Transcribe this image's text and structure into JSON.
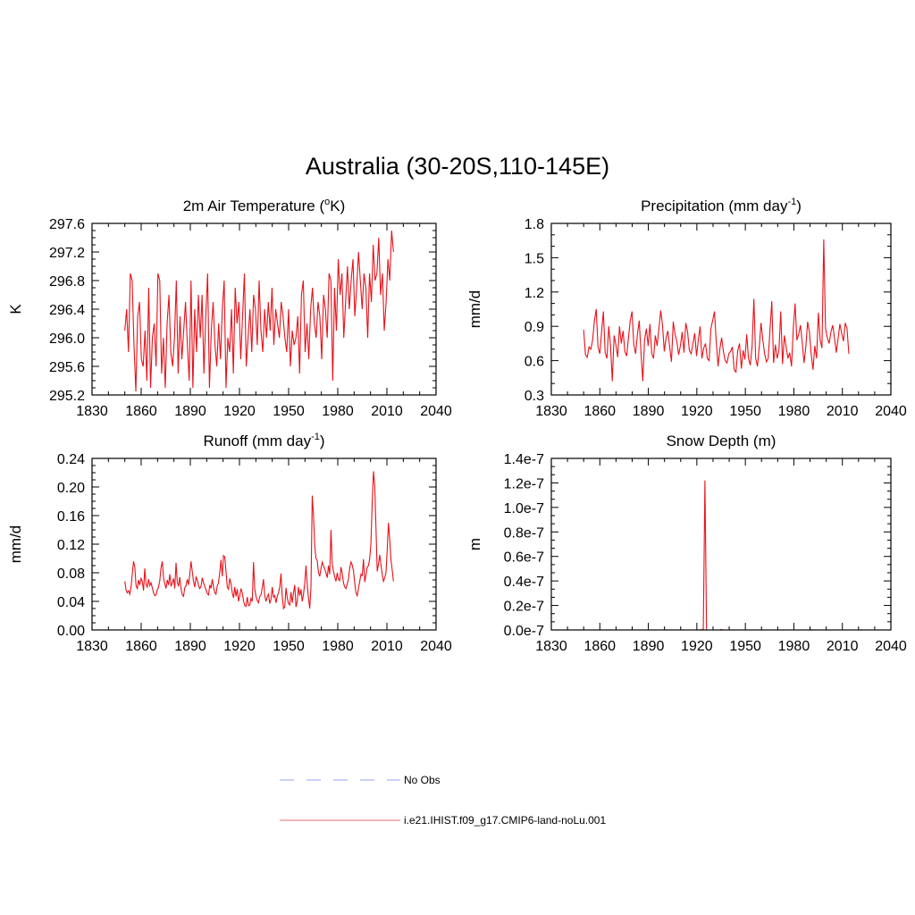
{
  "title": "Australia (30-20S,110-145E)",
  "legend": [
    {
      "label": "No Obs",
      "color": "#aab4f2",
      "dash": true
    },
    {
      "label": "i.e21.IHIST.f09_g17.CMIP6-land-noLu.001",
      "color": "#f08a8a",
      "dash": false
    }
  ],
  "chart_data": [
    {
      "type": "line",
      "title_pre": "2m Air Temperature (",
      "title_sup": "o",
      "title_post": "K)",
      "ylabel": "K",
      "xlim": [
        1830,
        2040
      ],
      "ylim": [
        295.2,
        297.6
      ],
      "xticks": [
        "1830",
        "1860",
        "1890",
        "1920",
        "1950",
        "1980",
        "2010",
        "2040"
      ],
      "yticks": [
        "295.2",
        "295.6",
        "296.0",
        "296.4",
        "296.8",
        "297.2",
        "297.6"
      ],
      "series": [
        {
          "color": "#e8111a",
          "x_start": 1850,
          "values": [
            296.1,
            296.4,
            295.8,
            296.9,
            296.8,
            295.9,
            295.25,
            296.3,
            296.5,
            295.7,
            295.6,
            296.1,
            295.4,
            296.7,
            295.3,
            296.0,
            296.2,
            295.6,
            296.9,
            296.8,
            295.5,
            296.0,
            295.3,
            296.2,
            296.6,
            295.8,
            295.6,
            296.0,
            296.8,
            295.5,
            296.3,
            295.7,
            296.1,
            296.5,
            295.9,
            295.4,
            296.8,
            295.3,
            296.4,
            295.8,
            296.6,
            296.0,
            296.6,
            295.5,
            296.3,
            296.9,
            295.3,
            296.1,
            296.5,
            295.9,
            295.6,
            296.2,
            295.7,
            296.4,
            296.8,
            295.3,
            296.0,
            295.8,
            296.4,
            295.5,
            296.7,
            296.2,
            296.5,
            295.7,
            296.3,
            296.9,
            295.6,
            296.0,
            296.4,
            295.8,
            296.6,
            296.4,
            295.9,
            296.8,
            296.1,
            295.8,
            296.4,
            296.0,
            296.5,
            296.1,
            296.7,
            295.9,
            296.4,
            296.2,
            296.0,
            296.5,
            296.3,
            296.0,
            295.8,
            296.4,
            295.6,
            296.1,
            295.9,
            296.0,
            296.3,
            295.5,
            296.6,
            296.8,
            295.8,
            296.2,
            295.7,
            296.4,
            296.7,
            296.2,
            296.0,
            296.5,
            296.3,
            295.7,
            296.6,
            296.4,
            296.0,
            296.9,
            296.8,
            295.4,
            296.7,
            296.1,
            297.1,
            296.6,
            296.9,
            296.0,
            296.5,
            297.0,
            296.4,
            296.8,
            297.1,
            296.3,
            296.7,
            297.2,
            296.8,
            296.4,
            296.9,
            296.7,
            296.0,
            296.9,
            296.5,
            297.3,
            296.8,
            296.9,
            297.4,
            296.6,
            296.9,
            296.1,
            296.5,
            297.1,
            296.8,
            297.5,
            297.2
          ]
        }
      ]
    },
    {
      "type": "line",
      "title_pre": "Precipitation (mm day",
      "title_sup": "-1",
      "title_post": ")",
      "ylabel": "mm/d",
      "xlim": [
        1830,
        2040
      ],
      "ylim": [
        0.3,
        1.8
      ],
      "xticks": [
        "1830",
        "1860",
        "1890",
        "1920",
        "1950",
        "1980",
        "2010",
        "2040"
      ],
      "yticks": [
        "0.3",
        "0.6",
        "0.9",
        "1.2",
        "1.5",
        "1.8"
      ],
      "series": [
        {
          "color": "#e8111a",
          "x_start": 1850,
          "values": [
            0.87,
            0.65,
            0.63,
            0.72,
            0.7,
            0.78,
            0.95,
            1.05,
            0.72,
            0.66,
            0.85,
            1.03,
            0.67,
            0.62,
            0.9,
            0.73,
            0.42,
            0.82,
            0.74,
            0.63,
            0.9,
            0.75,
            0.86,
            0.68,
            0.64,
            0.8,
            0.95,
            1.03,
            0.74,
            0.66,
            0.83,
            0.95,
            0.67,
            0.42,
            0.78,
            0.88,
            0.73,
            0.92,
            0.66,
            0.62,
            0.82,
            0.73,
            0.88,
            1.04,
            0.91,
            0.68,
            0.8,
            0.86,
            0.72,
            0.59,
            0.94,
            0.83,
            0.77,
            0.65,
            0.73,
            0.85,
            0.67,
            0.93,
            0.85,
            0.69,
            0.66,
            0.75,
            0.84,
            0.64,
            0.78,
            0.9,
            0.62,
            0.71,
            0.75,
            0.62,
            0.6,
            0.88,
            0.95,
            1.03,
            0.77,
            0.55,
            0.7,
            0.8,
            0.68,
            0.6,
            0.58,
            0.66,
            0.68,
            0.72,
            0.52,
            0.5,
            0.69,
            0.75,
            0.53,
            0.69,
            0.61,
            0.83,
            0.62,
            0.56,
            0.72,
            1.14,
            0.62,
            0.55,
            0.72,
            0.93,
            0.78,
            0.66,
            0.59,
            0.62,
            0.87,
            1.12,
            0.58,
            0.74,
            0.62,
            0.69,
            1.03,
            0.57,
            0.82,
            0.72,
            0.62,
            0.67,
            0.55,
            0.88,
            1.1,
            0.78,
            0.83,
            0.91,
            0.76,
            0.58,
            0.72,
            0.94,
            0.85,
            0.66,
            0.52,
            0.73,
            0.62,
            1.02,
            0.78,
            0.71,
            1.66,
            0.88,
            0.8,
            0.75,
            0.85,
            0.91,
            0.8,
            0.67,
            0.79,
            0.92,
            0.84,
            0.77,
            0.93,
            0.88,
            0.66
          ]
        }
      ]
    },
    {
      "type": "line",
      "title_pre": "Runoff (mm day",
      "title_sup": "-1",
      "title_post": ")",
      "ylabel": "mm/d",
      "xlim": [
        1830,
        2040
      ],
      "ylim": [
        0.0,
        0.24
      ],
      "xticks": [
        "1830",
        "1860",
        "1890",
        "1920",
        "1950",
        "1980",
        "2010",
        "2040"
      ],
      "yticks": [
        "0.00",
        "0.04",
        "0.08",
        "0.12",
        "0.16",
        "0.20",
        "0.24"
      ],
      "series": [
        {
          "color": "#e8111a",
          "x_start": 1850,
          "values": [
            0.068,
            0.056,
            0.052,
            0.055,
            0.05,
            0.06,
            0.078,
            0.096,
            0.088,
            0.062,
            0.058,
            0.07,
            0.063,
            0.072,
            0.068,
            0.055,
            0.086,
            0.064,
            0.06,
            0.071,
            0.062,
            0.066,
            0.059,
            0.052,
            0.048,
            0.049,
            0.056,
            0.06,
            0.069,
            0.087,
            0.096,
            0.073,
            0.065,
            0.058,
            0.07,
            0.063,
            0.078,
            0.061,
            0.066,
            0.072,
            0.058,
            0.094,
            0.067,
            0.061,
            0.074,
            0.058,
            0.049,
            0.047,
            0.059,
            0.062,
            0.071,
            0.063,
            0.078,
            0.096,
            0.082,
            0.068,
            0.06,
            0.074,
            0.07,
            0.062,
            0.058,
            0.061,
            0.073,
            0.066,
            0.061,
            0.056,
            0.051,
            0.049,
            0.063,
            0.058,
            0.071,
            0.06,
            0.052,
            0.05,
            0.062,
            0.066,
            0.081,
            0.098,
            0.075,
            0.104,
            0.102,
            0.082,
            0.06,
            0.057,
            0.072,
            0.065,
            0.052,
            0.045,
            0.06,
            0.047,
            0.057,
            0.04,
            0.048,
            0.058,
            0.052,
            0.041,
            0.034,
            0.033,
            0.046,
            0.034,
            0.035,
            0.044,
            0.04,
            0.095,
            0.057,
            0.047,
            0.041,
            0.038,
            0.047,
            0.049,
            0.059,
            0.071,
            0.048,
            0.04,
            0.046,
            0.05,
            0.037,
            0.043,
            0.06,
            0.046,
            0.048,
            0.038,
            0.047,
            0.052,
            0.06,
            0.079,
            0.047,
            0.03,
            0.032,
            0.059,
            0.045,
            0.037,
            0.035,
            0.053,
            0.038,
            0.052,
            0.063,
            0.032,
            0.04,
            0.06,
            0.048,
            0.057,
            0.04,
            0.05,
            0.065,
            0.09,
            0.063,
            0.045,
            0.03,
            0.06,
            0.188,
            0.16,
            0.118,
            0.1,
            0.097,
            0.08,
            0.075,
            0.086,
            0.095,
            0.09,
            0.085,
            0.08,
            0.073,
            0.09,
            0.078,
            0.14,
            0.092,
            0.082,
            0.074,
            0.068,
            0.08,
            0.071,
            0.069,
            0.088,
            0.079,
            0.066,
            0.06,
            0.058,
            0.064,
            0.071,
            0.087,
            0.095,
            0.091,
            0.083,
            0.066,
            0.052,
            0.048,
            0.058,
            0.068,
            0.078,
            0.076,
            0.099,
            0.067,
            0.077,
            0.088,
            0.09,
            0.1,
            0.122,
            0.179,
            0.222,
            0.202,
            0.143,
            0.082,
            0.092,
            0.105,
            0.091,
            0.078,
            0.068,
            0.073,
            0.08,
            0.112,
            0.15,
            0.127,
            0.098,
            0.084,
            0.068
          ]
        }
      ]
    },
    {
      "type": "line",
      "title_pre": "Snow Depth (m)",
      "title_sup": "",
      "title_post": "",
      "ylabel": "m",
      "xlim": [
        1830,
        2040
      ],
      "ylim": [
        0.0,
        1.4e-07
      ],
      "xticks": [
        "1830",
        "1860",
        "1890",
        "1920",
        "1950",
        "1980",
        "2010",
        "2040"
      ],
      "yticks": [
        "0.0e-7",
        "0.2e-7",
        "0.4e-7",
        "0.6e-7",
        "0.8e-7",
        "1.0e-7",
        "1.2e-7",
        "1.4e-7"
      ],
      "series": [
        {
          "color": "#e8111a",
          "points": [
            [
              1850,
              0
            ],
            [
              1922,
              0
            ],
            [
              1924,
              5e-10
            ],
            [
              1925,
              1.22e-07
            ],
            [
              1926,
              0
            ],
            [
              1927,
              0
            ],
            [
              1934,
              0
            ],
            [
              1935,
              4e-10
            ],
            [
              1936,
              0
            ],
            [
              1937,
              0
            ],
            [
              1990,
              0
            ],
            [
              1991,
              1e-10
            ],
            [
              1992,
              0
            ],
            [
              2014,
              0
            ]
          ]
        }
      ]
    }
  ]
}
